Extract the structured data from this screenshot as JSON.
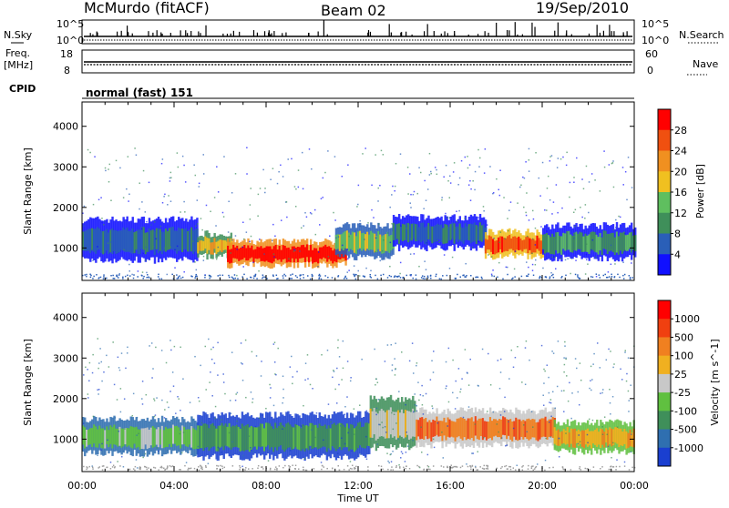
{
  "header": {
    "station": "McMurdo (fitACF)",
    "beam": "Beam 02",
    "date": "19/Sep/2010"
  },
  "panels": {
    "nsky": {
      "label": "N.Sky",
      "ticks": [
        "10^5",
        "10^0"
      ]
    },
    "nsearch": {
      "label": "N.Search",
      "ticks": [
        "10^5",
        "10^0"
      ]
    },
    "freq": {
      "label_top": "Freq.",
      "label_unit": "[MHz]",
      "ticks": [
        "18",
        "8"
      ]
    },
    "nave": {
      "label": "Nave",
      "ticks": [
        "60",
        "0"
      ]
    },
    "cpid": {
      "label": "CPID",
      "value": "normal (fast) 151"
    }
  },
  "chart_data": [
    {
      "type": "heatmap",
      "name": "power",
      "ylabel": "Slant Range [km]",
      "yticks": [
        "1000",
        "2000",
        "3000",
        "4000"
      ],
      "ylim": [
        200,
        4600
      ],
      "xlim": [
        0,
        24
      ],
      "colorbar": {
        "label": "Power [dB]",
        "ticks": [
          "4",
          "8",
          "12",
          "16",
          "20",
          "24",
          "28"
        ],
        "colors": [
          "#1010ff",
          "#2a5fb8",
          "#3f8f5a",
          "#5fbf5f",
          "#f0c020",
          "#f09020",
          "#f05010",
          "#ff0000"
        ]
      },
      "bands": [
        {
          "t0": 0.0,
          "t1": 5.0,
          "r0": 700,
          "r1": 1700,
          "level": 1
        },
        {
          "t0": 5.0,
          "t1": 6.5,
          "r0": 800,
          "r1": 1350,
          "level": 4
        },
        {
          "t0": 6.3,
          "t1": 11.5,
          "r0": 580,
          "r1": 1150,
          "level": 7
        },
        {
          "t0": 11.0,
          "t1": 13.5,
          "r0": 780,
          "r1": 1550,
          "level": 3
        },
        {
          "t0": 13.5,
          "t1": 17.5,
          "r0": 1000,
          "r1": 1750,
          "level": 1
        },
        {
          "t0": 17.5,
          "t1": 20.0,
          "r0": 800,
          "r1": 1400,
          "level": 6
        },
        {
          "t0": 20.0,
          "t1": 24.0,
          "r0": 750,
          "r1": 1550,
          "level": 2
        }
      ]
    },
    {
      "type": "heatmap",
      "name": "velocity",
      "ylabel": "Slant Range [km]",
      "yticks": [
        "1000",
        "2000",
        "3000",
        "4000"
      ],
      "ylim": [
        200,
        4600
      ],
      "xlim": [
        0,
        24
      ],
      "xticks": [
        "00:00",
        "04:00",
        "08:00",
        "12:00",
        "16:00",
        "20:00",
        "00:00"
      ],
      "xlabel": "Time UT",
      "colorbar": {
        "label": "Velocity [m s^-1]",
        "ticks": [
          "1000",
          "500",
          "100",
          "25",
          "-25",
          "-100",
          "-500",
          "-1000"
        ],
        "colors": [
          "#1a3fd0",
          "#2f6fb0",
          "#3f8f5a",
          "#60c040",
          "#c8c8c8",
          "#f0b020",
          "#f08020",
          "#f04010",
          "#ff0000"
        ]
      },
      "bands": [
        {
          "t0": 0.0,
          "t1": 5.0,
          "r0": 650,
          "r1": 1500,
          "level": 3
        },
        {
          "t0": 5.0,
          "t1": 12.5,
          "r0": 560,
          "r1": 1600,
          "level": 2
        },
        {
          "t0": 12.5,
          "t1": 14.5,
          "r0": 800,
          "r1": 2000,
          "level": 4
        },
        {
          "t0": 14.5,
          "t1": 20.5,
          "r0": 850,
          "r1": 1700,
          "level": 6
        },
        {
          "t0": 20.5,
          "t1": 24.0,
          "r0": 700,
          "r1": 1400,
          "level": 5
        }
      ]
    }
  ]
}
